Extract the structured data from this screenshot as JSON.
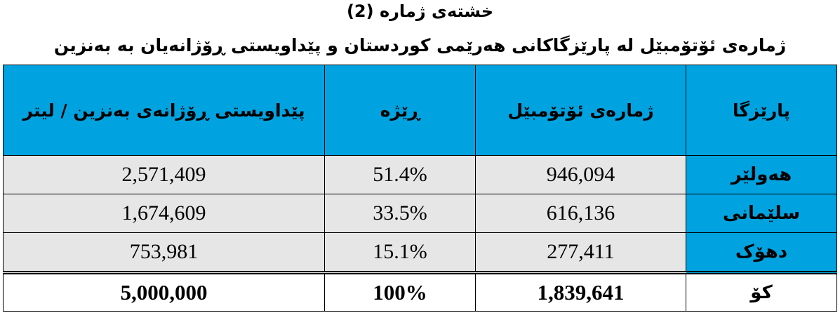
{
  "header": {
    "title": "خشتەی ژمارە (2)",
    "subtitle": "ژمارەی ئۆتۆمبێل لە پارێزگاکانی هەرێمی کوردستان و پێداویستی ڕۆژانەیان بە بەنزین"
  },
  "table": {
    "headers": [
      "پارێزگا",
      "ژمارەی ئۆتۆمبێل",
      "ڕێژە",
      "پێداویستی ڕۆژانەی بەنزین / لیتر"
    ],
    "rows": [
      [
        "هەولێر",
        "946,094",
        "51.4%",
        "2,571,409"
      ],
      [
        "سلێمانی",
        "616,136",
        "33.5%",
        "1,674,609"
      ],
      [
        "دهۆک",
        "277,411",
        "15.1%",
        "753,981"
      ]
    ],
    "total": [
      "کۆ",
      "1,839,641",
      "100%",
      "5,000,000"
    ]
  }
}
